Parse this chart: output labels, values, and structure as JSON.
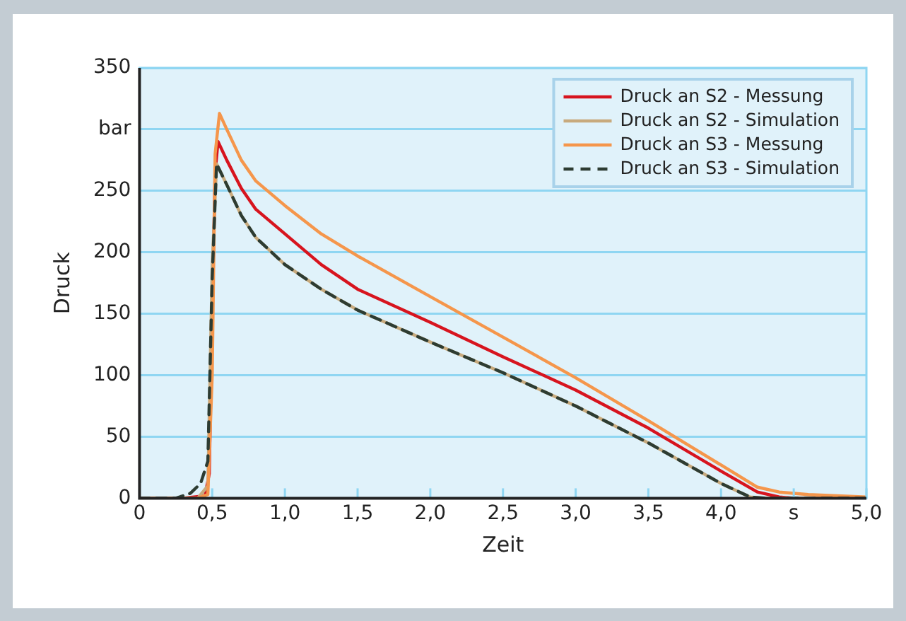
{
  "chart_data": {
    "type": "line",
    "xlabel": "Zeit",
    "ylabel": "Druck",
    "marker": "none",
    "grid": "y",
    "legend": "top right",
    "xlim": [
      0,
      5
    ],
    "xticks": [
      0,
      {
        "value": 0.5,
        "label": "0,5"
      },
      {
        "value": 1,
        "label": "1,0"
      },
      {
        "value": 1.5,
        "label": "1,5"
      },
      {
        "value": 2,
        "label": "2,0"
      },
      {
        "value": 2.5,
        "label": "2,5"
      },
      {
        "value": 3,
        "label": "3,0"
      },
      {
        "value": 3.5,
        "label": "3,5"
      },
      {
        "value": 4,
        "label": "4,0"
      },
      {
        "value": 4.5,
        "label": "s"
      },
      {
        "value": 5,
        "label": "5,0"
      }
    ],
    "ylim": [
      0,
      350
    ],
    "yticks": [
      0,
      50,
      100,
      150,
      200,
      250,
      {
        "value": 300,
        "label": "bar"
      },
      350
    ],
    "series": [
      {
        "name": "Druck an S2 - Messung",
        "color": "#d7141e",
        "line_style": "solid",
        "x": [
          0,
          0.3,
          0.45,
          0.48,
          0.5,
          0.52,
          0.54,
          0.6,
          0.7,
          0.8,
          1.0,
          1.25,
          1.5,
          2.0,
          2.5,
          3.0,
          3.5,
          4.0,
          4.25,
          4.4,
          4.5,
          5.0
        ],
        "values": [
          0,
          0,
          2,
          20,
          150,
          265,
          290,
          275,
          252,
          235,
          215,
          190,
          170,
          143,
          115,
          88,
          57,
          22,
          5,
          1,
          0,
          0
        ]
      },
      {
        "name": "Druck an S2 - Simulation",
        "color": "#c8aa7d",
        "line_style": "solid",
        "x": [
          0,
          0.4,
          0.47,
          0.5,
          0.53,
          0.6,
          0.7,
          0.8,
          1.0,
          1.25,
          1.5,
          2.0,
          2.5,
          3.0,
          3.5,
          4.0,
          4.2,
          4.3,
          5.0
        ],
        "values": [
          0,
          0,
          10,
          190,
          272,
          255,
          230,
          212,
          190,
          170,
          153,
          127,
          102,
          75,
          45,
          12,
          1,
          0,
          0
        ]
      },
      {
        "name": "Druck an S3 - Messung",
        "color": "#f5964b",
        "line_style": "solid",
        "x": [
          0,
          0.4,
          0.47,
          0.5,
          0.52,
          0.55,
          0.6,
          0.7,
          0.8,
          1.0,
          1.25,
          1.5,
          2.0,
          2.5,
          3.0,
          3.5,
          4.0,
          4.25,
          4.4,
          4.6,
          5.0
        ],
        "values": [
          0,
          0,
          3,
          100,
          280,
          313,
          300,
          275,
          258,
          238,
          215,
          197,
          164,
          131,
          98,
          63,
          27,
          9,
          5,
          3,
          1
        ]
      },
      {
        "name": "Druck an S3 - Simulation",
        "color": "#2d3c32",
        "line_style": "dashed",
        "x": [
          0,
          0.25,
          0.35,
          0.42,
          0.47,
          0.5,
          0.53,
          0.6,
          0.7,
          0.8,
          1.0,
          1.25,
          1.5,
          2.0,
          2.5,
          3.0,
          3.5,
          4.0,
          4.2,
          4.3,
          5.0
        ],
        "values": [
          0,
          0,
          4,
          12,
          30,
          180,
          272,
          255,
          230,
          212,
          190,
          170,
          153,
          127,
          102,
          75,
          45,
          12,
          1,
          0,
          0
        ]
      }
    ]
  }
}
